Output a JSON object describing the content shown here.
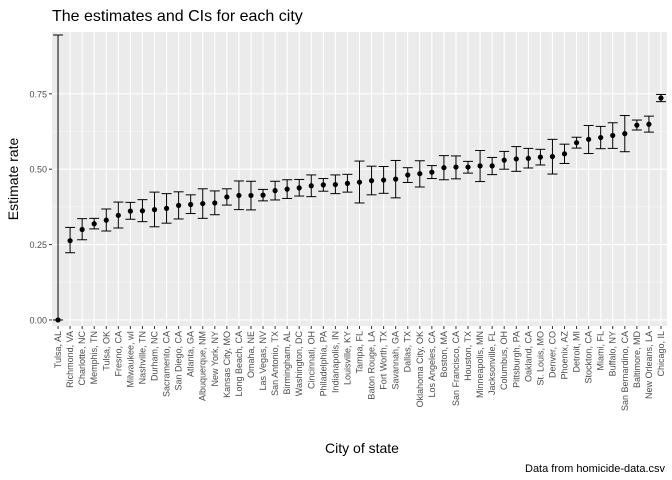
{
  "chart_data": {
    "type": "scatter",
    "title": "The estimates and CIs for each city",
    "xlabel": "City of state",
    "ylabel": "Estimate rate",
    "caption": "Data from homicide-data.csv",
    "ylim": [
      -0.02,
      0.955
    ],
    "yticks": [
      0.0,
      0.25,
      0.5,
      0.75
    ],
    "ytick_labels": [
      "0.00",
      "0.25",
      "0.50",
      "0.75"
    ],
    "grid": true,
    "categories": [
      "Tulsa, AL",
      "Richmond, VA",
      "Charlotte, NC",
      "Memphis, TN",
      "Tulsa, OK",
      "Fresno, CA",
      "Milwaukee, wI",
      "Nashville, TN",
      "Durham, NC",
      "Sacramento, CA",
      "San Diego, CA",
      "Atlanta, GA",
      "Albuquerque, NM",
      "New York, NY",
      "Kansas City, MO",
      "Long Beach, CA",
      "Omaha, NE",
      "Las Vegas, NV",
      "San Antonio, TX",
      "Birmingham, AL",
      "Washington, DC",
      "Cincinnati, OH",
      "Philadelphia, PA",
      "Indianapolis, IN",
      "Louisville, KY",
      "Tampa, FL",
      "Baton Rouge, LA",
      "Fort Worth, TX",
      "Savannah, GA",
      "Dallas, TX",
      "Oklahoma City, OK",
      "Los Angeles, CA",
      "Boston, MA",
      "San Francisco, CA",
      "Houston, TX",
      "Minneapolis, MN",
      "Jacksonville, FL",
      "Columbus, OH",
      "Pittsburgh, PA",
      "Oakland, CA",
      "St. Louis, MO",
      "Denver, CO",
      "Phoenix, AZ",
      "Detroit, MI",
      "Stockton, CA",
      "Miami, FL",
      "Buffalo, NY",
      "San Bernardino, CA",
      "Baltimore, MD",
      "New Orleans, LA",
      "Chicago, IL"
    ],
    "series": [
      {
        "estimate": [
          0.0,
          0.263,
          0.3,
          0.319,
          0.331,
          0.347,
          0.361,
          0.362,
          0.366,
          0.37,
          0.38,
          0.383,
          0.386,
          0.388,
          0.408,
          0.413,
          0.413,
          0.414,
          0.429,
          0.434,
          0.438,
          0.445,
          0.448,
          0.449,
          0.453,
          0.457,
          0.462,
          0.464,
          0.467,
          0.481,
          0.485,
          0.49,
          0.505,
          0.507,
          0.507,
          0.511,
          0.511,
          0.53,
          0.534,
          0.536,
          0.54,
          0.542,
          0.551,
          0.588,
          0.599,
          0.605,
          0.612,
          0.618,
          0.646,
          0.649,
          0.736
        ],
        "lower": [
          0.0,
          0.223,
          0.266,
          0.302,
          0.295,
          0.305,
          0.334,
          0.326,
          0.309,
          0.321,
          0.335,
          0.353,
          0.337,
          0.349,
          0.381,
          0.366,
          0.365,
          0.395,
          0.398,
          0.403,
          0.411,
          0.409,
          0.427,
          0.419,
          0.424,
          0.388,
          0.415,
          0.42,
          0.405,
          0.456,
          0.441,
          0.469,
          0.465,
          0.468,
          0.487,
          0.459,
          0.482,
          0.5,
          0.493,
          0.504,
          0.514,
          0.484,
          0.519,
          0.57,
          0.552,
          0.568,
          0.569,
          0.558,
          0.63,
          0.623,
          0.724
        ],
        "upper": [
          0.945,
          0.307,
          0.336,
          0.337,
          0.368,
          0.391,
          0.39,
          0.399,
          0.424,
          0.419,
          0.425,
          0.415,
          0.435,
          0.428,
          0.435,
          0.461,
          0.46,
          0.433,
          0.46,
          0.465,
          0.466,
          0.481,
          0.469,
          0.481,
          0.483,
          0.527,
          0.51,
          0.509,
          0.529,
          0.505,
          0.528,
          0.512,
          0.545,
          0.544,
          0.526,
          0.562,
          0.539,
          0.559,
          0.575,
          0.569,
          0.566,
          0.599,
          0.583,
          0.606,
          0.645,
          0.642,
          0.654,
          0.678,
          0.663,
          0.676,
          0.748
        ]
      }
    ]
  }
}
